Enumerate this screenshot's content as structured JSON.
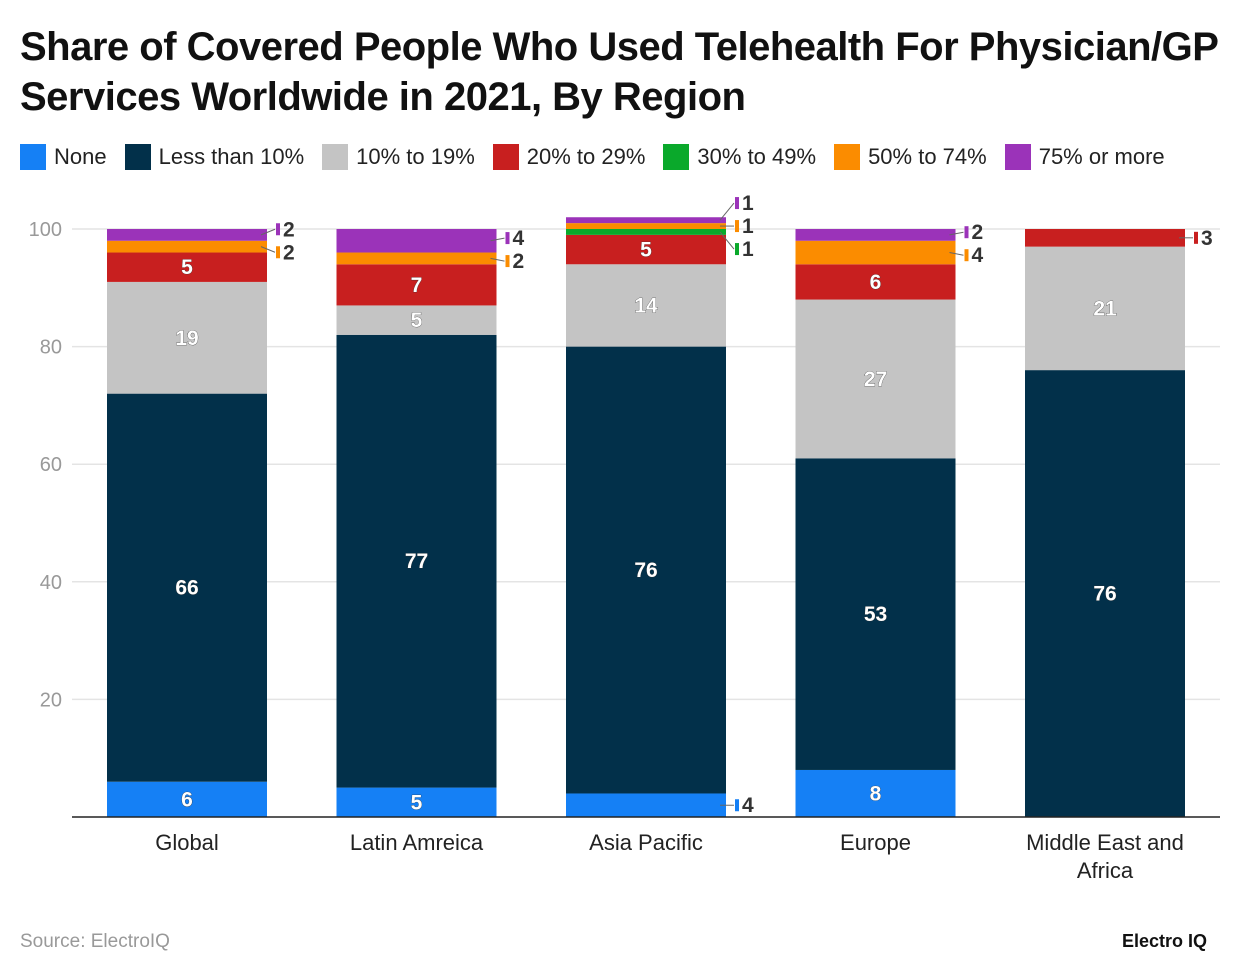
{
  "chart_data": {
    "type": "bar",
    "stacked": true,
    "title": "Share of Covered People Who Used Telehealth For Physician/GP Services Worldwide in 2021, By Region",
    "categories": [
      "Global",
      "Latin Amreica",
      "Asia Pacific",
      "Europe",
      "Middle East and Africa"
    ],
    "series": [
      {
        "name": "None",
        "color": "#1580f5",
        "values": [
          6,
          5,
          4,
          8,
          0
        ]
      },
      {
        "name": "Less than 10%",
        "color": "#02304a",
        "values": [
          66,
          77,
          76,
          53,
          76
        ]
      },
      {
        "name": "10% to 19%",
        "color": "#c4c4c4",
        "values": [
          19,
          5,
          14,
          27,
          21
        ]
      },
      {
        "name": "20% to 29%",
        "color": "#c81f1f",
        "values": [
          5,
          7,
          5,
          6,
          3
        ]
      },
      {
        "name": "30% to 49%",
        "color": "#0aa92b",
        "values": [
          0,
          0,
          1,
          0,
          0
        ]
      },
      {
        "name": "50% to 74%",
        "color": "#fb8c00",
        "values": [
          2,
          2,
          1,
          4,
          0
        ]
      },
      {
        "name": "75% or more",
        "color": "#9b33b9",
        "values": [
          2,
          4,
          1,
          2,
          0
        ]
      }
    ],
    "ylim": [
      0,
      102
    ],
    "yticks": [
      20,
      40,
      60,
      80,
      100
    ],
    "grid": true,
    "legend": "top-left"
  },
  "footer": {
    "source": "Source: ElectroIQ",
    "brand": "Electro IQ"
  }
}
